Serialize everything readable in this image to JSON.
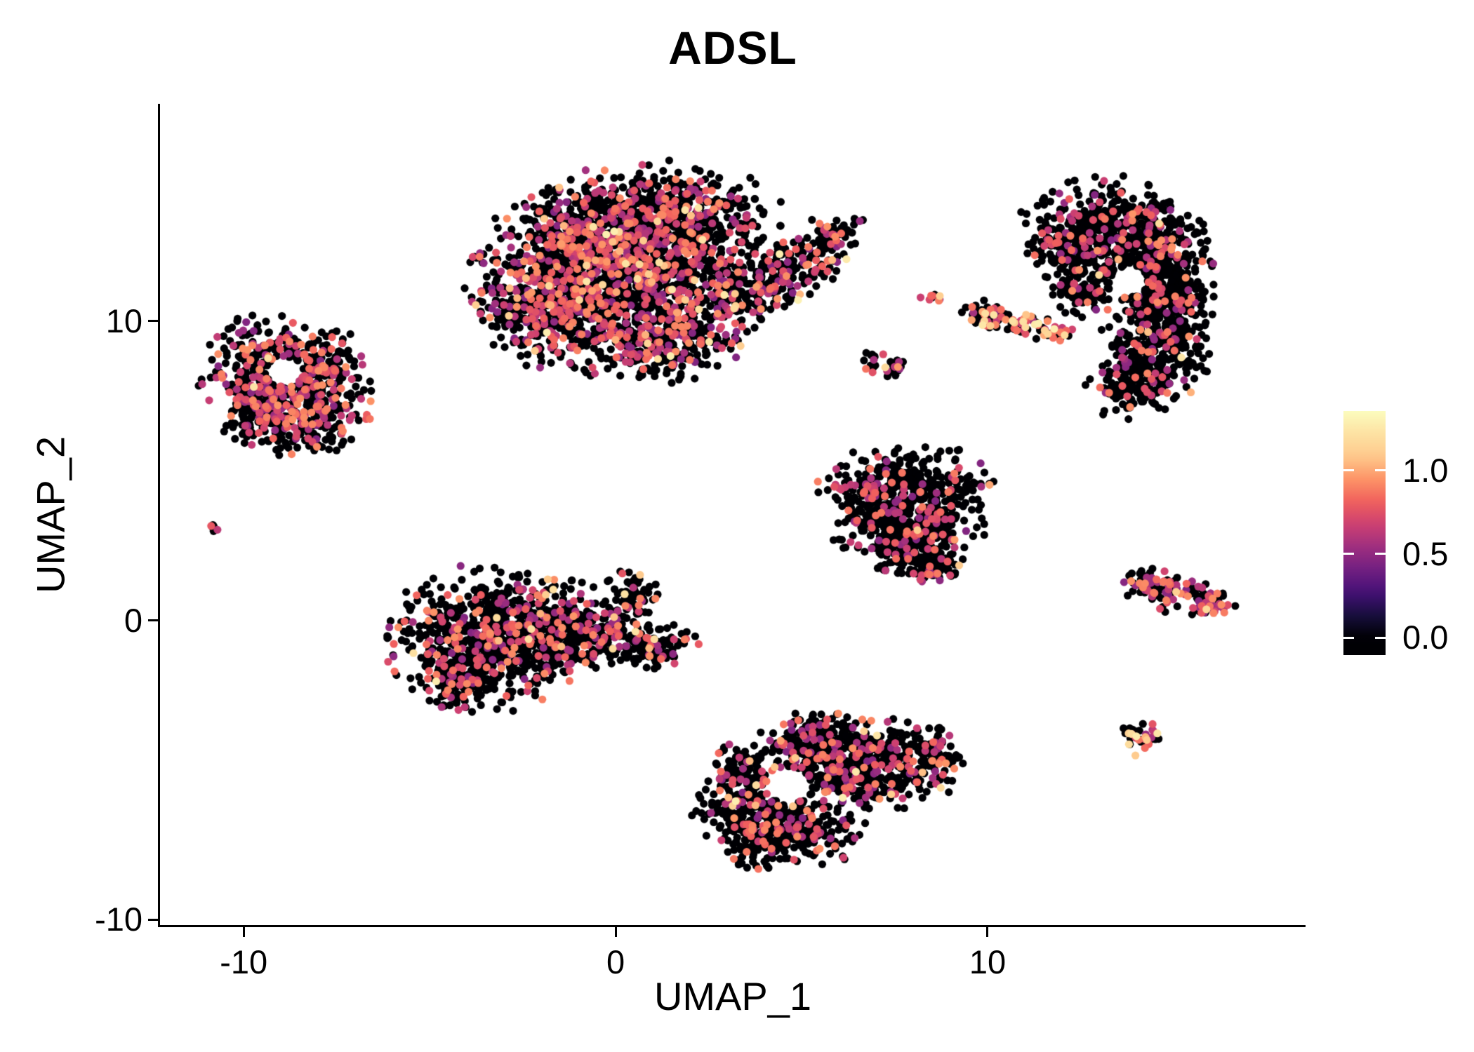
{
  "title": "ADSL",
  "colors": {
    "background": "#ffffff",
    "axis": "#000000",
    "text": "#000000"
  },
  "chart_data": {
    "type": "scatter",
    "title": "ADSL",
    "xlabel": "UMAP_1",
    "ylabel": "UMAP_2",
    "xlim": [
      -12.25,
      18.55
    ],
    "ylim": [
      -10.2,
      17.25
    ],
    "grid": false,
    "point_radius_px": 5.6,
    "seed": 20240512,
    "x_ticks": [
      {
        "value": -10,
        "label": "-10"
      },
      {
        "value": 0,
        "label": "0"
      },
      {
        "value": 10,
        "label": "10"
      }
    ],
    "y_ticks": [
      {
        "value": 10,
        "label": "10"
      },
      {
        "value": 0,
        "label": "0"
      },
      {
        "value": -10,
        "label": "-10"
      }
    ],
    "colormap": {
      "name": "magma",
      "value_max": 1.36,
      "stops": [
        [
          0.0,
          "#000004"
        ],
        [
          0.1,
          "#180f3e"
        ],
        [
          0.2,
          "#451077"
        ],
        [
          0.3,
          "#721f81"
        ],
        [
          0.4,
          "#9f2f7f"
        ],
        [
          0.5,
          "#cd4071"
        ],
        [
          0.6,
          "#f1605d"
        ],
        [
          0.7,
          "#fd9567"
        ],
        [
          0.8,
          "#feca8d"
        ],
        [
          0.9,
          "#fde2a3"
        ],
        [
          1.0,
          "#fcfdbf"
        ]
      ]
    },
    "legend": {
      "position": "right",
      "domain": [
        -0.105,
        1.357
      ],
      "ticks": [
        {
          "value": 1.0,
          "label": "1.0"
        },
        {
          "value": 0.5,
          "label": "0.5"
        },
        {
          "value": 0.0,
          "label": "0.0"
        }
      ]
    },
    "clusters": [
      {
        "name": "top-center-large",
        "lobes": [
          {
            "x": 0.2,
            "y": 11.4,
            "sx": 1.8,
            "sy": 1.4,
            "n": 1500
          },
          {
            "x": 1.1,
            "y": 13.5,
            "sx": 1.5,
            "sy": 0.8,
            "n": 520
          },
          {
            "x": -1.7,
            "y": 10.3,
            "sx": 0.85,
            "sy": 0.8,
            "n": 260
          },
          {
            "x": 1.4,
            "y": 9.2,
            "sx": 0.9,
            "sy": 0.55,
            "n": 190
          },
          {
            "x": -0.9,
            "y": 12.9,
            "sx": 0.8,
            "sy": 0.7,
            "n": 200
          },
          {
            "x": 3.3,
            "y": 10.9,
            "sx": 0.5,
            "sy": 0.5,
            "n": 80
          },
          {
            "x": 4.3,
            "y": 11.3,
            "sx": 0.5,
            "sy": 0.4,
            "n": 90
          },
          {
            "x": 5.1,
            "y": 12.1,
            "sx": 0.5,
            "sy": 0.4,
            "n": 85
          },
          {
            "x": 5.8,
            "y": 12.9,
            "sx": 0.35,
            "sy": 0.3,
            "n": 55
          },
          {
            "x": 6.6,
            "y": 13.3,
            "sx": 0.12,
            "sy": 0.1,
            "n": 3
          }
        ],
        "holes": [],
        "expr": {
          "p_mid": 0.28,
          "p_high": 0.018,
          "mid": [
            0.45,
            0.95
          ],
          "high": [
            0.95,
            1.3
          ]
        }
      },
      {
        "name": "left",
        "lobes": [
          {
            "x": -9.3,
            "y": 8.4,
            "sx": 0.85,
            "sy": 0.8,
            "n": 280
          },
          {
            "x": -8.4,
            "y": 7.0,
            "sx": 0.9,
            "sy": 0.75,
            "n": 300
          },
          {
            "x": -9.6,
            "y": 7.0,
            "sx": 0.5,
            "sy": 0.5,
            "n": 90
          },
          {
            "x": -7.8,
            "y": 8.6,
            "sx": 0.5,
            "sy": 0.5,
            "n": 90
          }
        ],
        "holes": [
          {
            "x": -8.9,
            "y": 8.3,
            "r": 0.5
          }
        ],
        "expr": {
          "p_mid": 0.3,
          "p_high": 0.008,
          "mid": [
            0.45,
            0.95
          ],
          "high": [
            0.95,
            1.25
          ]
        }
      },
      {
        "name": "tiny-far-left",
        "lobes": [
          {
            "x": -10.75,
            "y": 3.05,
            "sx": 0.12,
            "sy": 0.1,
            "n": 6
          }
        ],
        "holes": [],
        "expr": {
          "p_mid": 0.4,
          "p_high": 0.0,
          "mid": [
            0.5,
            0.8
          ],
          "high": [
            1.0,
            1.2
          ]
        }
      },
      {
        "name": "center-left-lower",
        "lobes": [
          {
            "x": -3.4,
            "y": -0.6,
            "sx": 1.2,
            "sy": 1.05,
            "n": 700
          },
          {
            "x": -1.7,
            "y": -0.3,
            "sx": 0.8,
            "sy": 0.75,
            "n": 260
          },
          {
            "x": -0.3,
            "y": -0.5,
            "sx": 0.65,
            "sy": 0.5,
            "n": 150
          },
          {
            "x": 1.0,
            "y": -0.9,
            "sx": 0.55,
            "sy": 0.35,
            "n": 90
          },
          {
            "x": 0.5,
            "y": 0.9,
            "sx": 0.35,
            "sy": 0.45,
            "n": 60
          },
          {
            "x": -4.3,
            "y": -2.0,
            "sx": 0.5,
            "sy": 0.4,
            "n": 90
          }
        ],
        "holes": [],
        "expr": {
          "p_mid": 0.2,
          "p_high": 0.015,
          "mid": [
            0.45,
            0.95
          ],
          "high": [
            0.95,
            1.3
          ]
        }
      },
      {
        "name": "center-right",
        "lobes": [
          {
            "x": 7.9,
            "y": 4.5,
            "sx": 1.05,
            "sy": 0.6,
            "n": 300
          },
          {
            "x": 7.8,
            "y": 3.4,
            "sx": 0.95,
            "sy": 0.65,
            "n": 300
          },
          {
            "x": 8.0,
            "y": 2.3,
            "sx": 0.6,
            "sy": 0.5,
            "n": 170
          },
          {
            "x": 8.6,
            "y": 1.7,
            "sx": 0.3,
            "sy": 0.22,
            "n": 45
          }
        ],
        "holes": [],
        "expr": {
          "p_mid": 0.17,
          "p_high": 0.008,
          "mid": [
            0.45,
            0.9
          ],
          "high": [
            0.95,
            1.2
          ]
        }
      },
      {
        "name": "bottom-center",
        "lobes": [
          {
            "x": 3.9,
            "y": -6.3,
            "sx": 0.8,
            "sy": 0.85,
            "n": 330
          },
          {
            "x": 6.6,
            "y": -4.9,
            "sx": 1.15,
            "sy": 0.8,
            "n": 430
          },
          {
            "x": 5.4,
            "y": -4.1,
            "sx": 0.8,
            "sy": 0.5,
            "n": 190
          },
          {
            "x": 5.0,
            "y": -7.2,
            "sx": 0.7,
            "sy": 0.45,
            "n": 150
          },
          {
            "x": 8.4,
            "y": -4.5,
            "sx": 0.5,
            "sy": 0.45,
            "n": 90
          },
          {
            "x": 3.3,
            "y": -5.0,
            "sx": 0.4,
            "sy": 0.4,
            "n": 60
          }
        ],
        "holes": [
          {
            "x": 4.65,
            "y": -5.5,
            "r": 0.6
          }
        ],
        "expr": {
          "p_mid": 0.21,
          "p_high": 0.013,
          "mid": [
            0.45,
            0.95
          ],
          "high": [
            0.95,
            1.3
          ]
        }
      },
      {
        "name": "right-crescent",
        "lobes": [
          {
            "x": 13.2,
            "y": 13.2,
            "sx": 1.0,
            "sy": 0.7,
            "n": 330
          },
          {
            "x": 14.4,
            "y": 12.2,
            "sx": 0.75,
            "sy": 0.75,
            "n": 280
          },
          {
            "x": 14.8,
            "y": 10.7,
            "sx": 0.6,
            "sy": 0.85,
            "n": 270
          },
          {
            "x": 14.5,
            "y": 9.0,
            "sx": 0.65,
            "sy": 0.75,
            "n": 230
          },
          {
            "x": 13.9,
            "y": 7.7,
            "sx": 0.55,
            "sy": 0.45,
            "n": 120
          },
          {
            "x": 12.3,
            "y": 12.4,
            "sx": 0.55,
            "sy": 0.6,
            "n": 140
          },
          {
            "x": 12.6,
            "y": 11.1,
            "sx": 0.45,
            "sy": 0.5,
            "n": 90
          }
        ],
        "holes": [
          {
            "x": 13.8,
            "y": 11.3,
            "r": 0.5
          }
        ],
        "expr": {
          "p_mid": 0.14,
          "p_high": 0.008,
          "mid": [
            0.45,
            0.95
          ],
          "high": [
            0.95,
            1.25
          ]
        }
      },
      {
        "name": "tiny-mid-orange",
        "lobes": [
          {
            "x": 8.5,
            "y": 10.8,
            "sx": 0.16,
            "sy": 0.14,
            "n": 10
          }
        ],
        "holes": [],
        "expr": {
          "p_mid": 0.3,
          "p_high": 0.35,
          "mid": [
            0.5,
            0.9
          ],
          "high": [
            1.0,
            1.3
          ]
        }
      },
      {
        "name": "small-streak",
        "lobes": [
          {
            "x": 10.0,
            "y": 10.2,
            "sx": 0.3,
            "sy": 0.22,
            "n": 45
          },
          {
            "x": 10.9,
            "y": 9.9,
            "sx": 0.45,
            "sy": 0.18,
            "n": 50
          },
          {
            "x": 11.7,
            "y": 9.6,
            "sx": 0.28,
            "sy": 0.14,
            "n": 25
          }
        ],
        "holes": [],
        "expr": {
          "p_mid": 0.3,
          "p_high": 0.1,
          "mid": [
            0.5,
            0.95
          ],
          "high": [
            0.95,
            1.3
          ]
        }
      },
      {
        "name": "tiny-mid-2",
        "lobes": [
          {
            "x": 7.4,
            "y": 8.5,
            "sx": 0.35,
            "sy": 0.18,
            "n": 22
          },
          {
            "x": 6.9,
            "y": 8.8,
            "sx": 0.14,
            "sy": 0.1,
            "n": 8
          }
        ],
        "holes": [],
        "expr": {
          "p_mid": 0.35,
          "p_high": 0.04,
          "mid": [
            0.5,
            0.9
          ],
          "high": [
            0.95,
            1.2
          ]
        }
      },
      {
        "name": "right-small",
        "lobes": [
          {
            "x": 14.3,
            "y": 1.2,
            "sx": 0.3,
            "sy": 0.26,
            "n": 45
          },
          {
            "x": 15.2,
            "y": 0.9,
            "sx": 0.5,
            "sy": 0.28,
            "n": 60
          },
          {
            "x": 16.0,
            "y": 0.5,
            "sx": 0.3,
            "sy": 0.2,
            "n": 30
          }
        ],
        "holes": [],
        "expr": {
          "p_mid": 0.42,
          "p_high": 0.015,
          "mid": [
            0.45,
            0.95
          ],
          "high": [
            0.95,
            1.2
          ]
        }
      },
      {
        "name": "tiny-bottom-right",
        "lobes": [
          {
            "x": 14.1,
            "y": -3.9,
            "sx": 0.28,
            "sy": 0.26,
            "n": 38
          }
        ],
        "holes": [],
        "expr": {
          "p_mid": 0.28,
          "p_high": 0.16,
          "mid": [
            0.5,
            0.9
          ],
          "high": [
            1.0,
            1.3
          ]
        }
      }
    ]
  }
}
